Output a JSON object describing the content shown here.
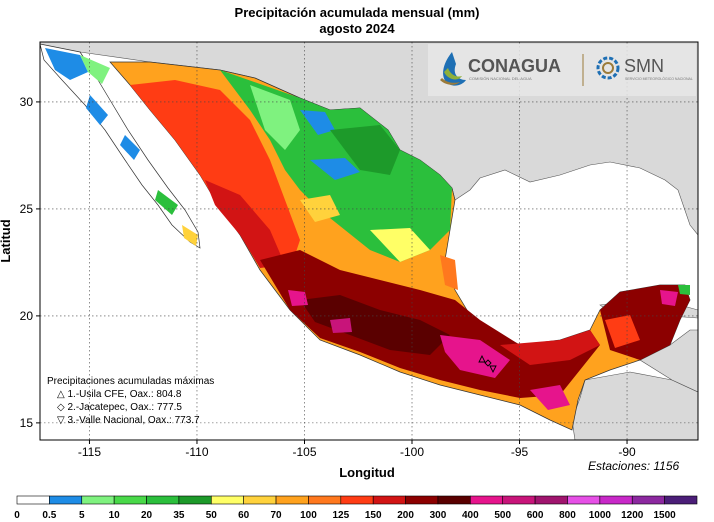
{
  "title": "Precipitación acumulada mensual (mm)",
  "subtitle": "agosto 2024",
  "axes": {
    "xlabel": "Longitud",
    "ylabel": "Latitud",
    "xticks": [
      -115,
      -110,
      -105,
      -100,
      -95,
      -90
    ],
    "yticks": [
      15,
      20,
      25,
      30
    ],
    "xlim": [
      -117.3,
      -86.7
    ],
    "ylim": [
      14.2,
      32.8
    ],
    "grid": true
  },
  "logos": {
    "conagua": "CONAGUA",
    "conagua_sub": "COMISIÓN NACIONAL DEL AGUA",
    "smn": "SMN",
    "smn_sub": "SERVICIO METEOROLÓGICO NACIONAL"
  },
  "maxima": {
    "heading": "Precipitaciones acumuladas máximas",
    "items": [
      {
        "symbol": "△",
        "text": "1.-Usila CFE, Oax.: 804.8"
      },
      {
        "symbol": "◇",
        "text": "2.-Jacatepec, Oax.: 777.5"
      },
      {
        "symbol": "▽",
        "text": "3.-Valle Nacional, Oax.: 773.7"
      }
    ]
  },
  "stations": "Estaciones:  1156",
  "colorbar": {
    "labels": [
      "0",
      "0.5",
      "5",
      "10",
      "20",
      "35",
      "50",
      "60",
      "70",
      "100",
      "125",
      "150",
      "200",
      "300",
      "400",
      "500",
      "600",
      "800",
      "1000",
      "1200",
      "1500"
    ],
    "colors": [
      "#ffffff",
      "#1e8ce6",
      "#7ff27f",
      "#49d949",
      "#2bbf3c",
      "#1d9a2a",
      "#ffff66",
      "#ffd23c",
      "#ffa21e",
      "#ff781e",
      "#ff3c14",
      "#d21414",
      "#8c0000",
      "#5a0000",
      "#e6148c",
      "#c8147a",
      "#a0146e",
      "#e650e6",
      "#c828c8",
      "#8c28a0",
      "#4b1e78"
    ]
  }
}
